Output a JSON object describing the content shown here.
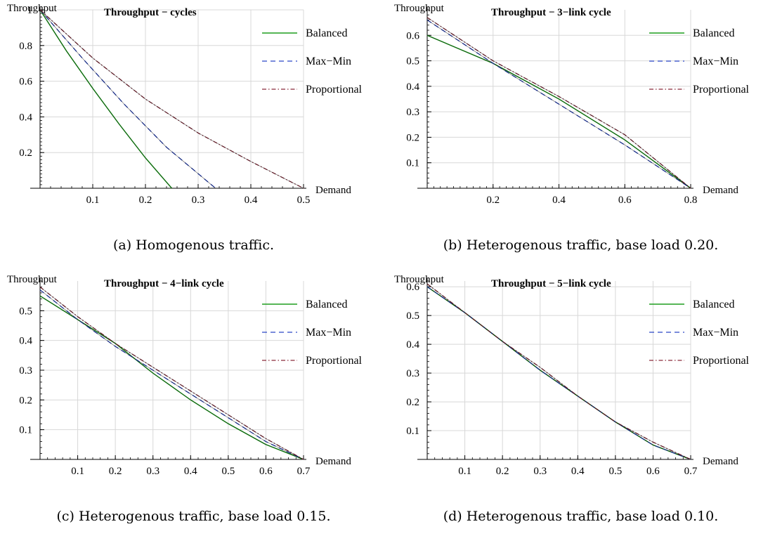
{
  "colors": {
    "balanced": "#1f9e1f",
    "maxmin": "#2a47c8",
    "proportional": "#8b2a3a",
    "envelope": "#000000",
    "grid": "#d8d8d8"
  },
  "legend": [
    "Balanced",
    "Max−Min",
    "Proportional"
  ],
  "chart_data": [
    {
      "type": "line",
      "title": "Throughput − cycles",
      "ylabel": "Throughput",
      "xlabel": "Demand",
      "caption": "(a) Homogenous traffic.",
      "xlim": [
        0,
        0.5
      ],
      "ylim": [
        0,
        1
      ],
      "xticks": [
        "0.1",
        "0.2",
        "0.3",
        "0.4",
        "0.5"
      ],
      "yticks": [
        "0.2",
        "0.4",
        "0.6",
        "0.8",
        "1"
      ],
      "series": [
        {
          "name": "Balanced",
          "x": [
            0,
            0.05,
            0.1,
            0.15,
            0.2,
            0.25
          ],
          "y": [
            1,
            0.77,
            0.56,
            0.36,
            0.17,
            0.0
          ]
        },
        {
          "name": "Max−Min",
          "x": [
            0,
            0.08,
            0.16,
            0.24,
            0.333
          ],
          "y": [
            1,
            0.73,
            0.47,
            0.23,
            0.0
          ]
        },
        {
          "name": "Proportional",
          "x": [
            0,
            0.1,
            0.2,
            0.3,
            0.4,
            0.5
          ],
          "y": [
            1,
            0.73,
            0.5,
            0.31,
            0.15,
            0.0
          ]
        }
      ]
    },
    {
      "type": "line",
      "title": "Throughput − 3−link cycle",
      "ylabel": "Throughput",
      "xlabel": "Demand",
      "caption": "(b) Heterogenous traffic, base load 0.20.",
      "xlim": [
        0,
        0.8
      ],
      "ylim": [
        0,
        0.7
      ],
      "xticks": [
        "0.2",
        "0.4",
        "0.6",
        "0.8"
      ],
      "yticks": [
        "0.1",
        "0.2",
        "0.3",
        "0.4",
        "0.5",
        "0.6"
      ],
      "series": [
        {
          "name": "Balanced",
          "x": [
            0,
            0.2,
            0.4,
            0.6,
            0.8
          ],
          "y": [
            0.6,
            0.49,
            0.35,
            0.19,
            0.0
          ]
        },
        {
          "name": "Max−Min",
          "x": [
            0,
            0.2,
            0.4,
            0.6,
            0.8
          ],
          "y": [
            0.66,
            0.49,
            0.33,
            0.17,
            0.0
          ]
        },
        {
          "name": "Proportional",
          "x": [
            0,
            0.2,
            0.4,
            0.6,
            0.8
          ],
          "y": [
            0.67,
            0.5,
            0.36,
            0.21,
            0.0
          ]
        }
      ]
    },
    {
      "type": "line",
      "title": "Throughput − 4−link cycle",
      "ylabel": "Throughput",
      "xlabel": "Demand",
      "caption": "(c) Heterogenous traffic, base load 0.15.",
      "xlim": [
        0,
        0.7
      ],
      "ylim": [
        0,
        0.6
      ],
      "xticks": [
        "0.1",
        "0.2",
        "0.3",
        "0.4",
        "0.5",
        "0.6",
        "0.7"
      ],
      "yticks": [
        "0.1",
        "0.2",
        "0.3",
        "0.4",
        "0.5"
      ],
      "series": [
        {
          "name": "Balanced",
          "x": [
            0,
            0.1,
            0.2,
            0.3,
            0.4,
            0.5,
            0.6,
            0.7
          ],
          "y": [
            0.55,
            0.47,
            0.39,
            0.29,
            0.2,
            0.12,
            0.05,
            0.0
          ]
        },
        {
          "name": "Max−Min",
          "x": [
            0,
            0.1,
            0.2,
            0.3,
            0.4,
            0.5,
            0.6,
            0.7
          ],
          "y": [
            0.57,
            0.47,
            0.38,
            0.3,
            0.22,
            0.14,
            0.06,
            0.0
          ]
        },
        {
          "name": "Proportional",
          "x": [
            0,
            0.1,
            0.2,
            0.3,
            0.4,
            0.5,
            0.6,
            0.7
          ],
          "y": [
            0.58,
            0.48,
            0.39,
            0.31,
            0.23,
            0.15,
            0.07,
            0.0
          ]
        }
      ]
    },
    {
      "type": "line",
      "title": "Throughput − 5−link cycle",
      "ylabel": "Throughput",
      "xlabel": "Demand",
      "caption": "(d) Heterogenous traffic, base load 0.10.",
      "xlim": [
        0,
        0.7
      ],
      "ylim": [
        0,
        0.62
      ],
      "xticks": [
        "0.1",
        "0.2",
        "0.3",
        "0.4",
        "0.5",
        "0.6",
        "0.7"
      ],
      "yticks": [
        "0.1",
        "0.2",
        "0.3",
        "0.4",
        "0.5",
        "0.6"
      ],
      "series": [
        {
          "name": "Balanced",
          "x": [
            0,
            0.1,
            0.2,
            0.3,
            0.4,
            0.5,
            0.6,
            0.7
          ],
          "y": [
            0.6,
            0.51,
            0.41,
            0.31,
            0.22,
            0.13,
            0.05,
            0.0
          ]
        },
        {
          "name": "Max−Min",
          "x": [
            0,
            0.1,
            0.2,
            0.3,
            0.4,
            0.5,
            0.6,
            0.7
          ],
          "y": [
            0.6,
            0.51,
            0.41,
            0.31,
            0.22,
            0.13,
            0.05,
            0.0
          ]
        },
        {
          "name": "Proportional",
          "x": [
            0,
            0.1,
            0.2,
            0.3,
            0.4,
            0.5,
            0.6,
            0.7
          ],
          "y": [
            0.61,
            0.51,
            0.41,
            0.32,
            0.22,
            0.13,
            0.06,
            0.0
          ]
        }
      ]
    }
  ]
}
